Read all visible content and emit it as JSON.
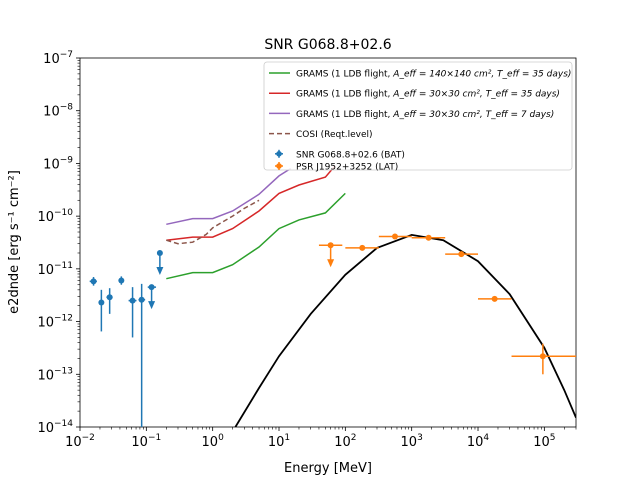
{
  "chart_data": {
    "type": "line",
    "title": "SNR G068.8+02.6",
    "xlabel": "Energy [MeV]",
    "ylabel": "e2dnde [erg s⁻¹ cm⁻²]",
    "xscale": "log",
    "yscale": "log",
    "xlim": [
      0.01,
      300000
    ],
    "ylim": [
      1e-14,
      1e-07
    ],
    "grid": false,
    "legend_position": "top-right",
    "x_ticks": [
      {
        "value": 0.01,
        "base": "10",
        "exp": "−2"
      },
      {
        "value": 0.1,
        "base": "10",
        "exp": "−1"
      },
      {
        "value": 1,
        "base": "10",
        "exp": "0"
      },
      {
        "value": 10,
        "base": "10",
        "exp": "1"
      },
      {
        "value": 100,
        "base": "10",
        "exp": "2"
      },
      {
        "value": 1000,
        "base": "10",
        "exp": "3"
      },
      {
        "value": 10000,
        "base": "10",
        "exp": "4"
      },
      {
        "value": 100000,
        "base": "10",
        "exp": "5"
      }
    ],
    "y_ticks": [
      {
        "value": 1e-14,
        "base": "10",
        "exp": "−14"
      },
      {
        "value": 1e-13,
        "base": "10",
        "exp": "−13"
      },
      {
        "value": 1e-12,
        "base": "10",
        "exp": "−12"
      },
      {
        "value": 1e-11,
        "base": "10",
        "exp": "−11"
      },
      {
        "value": 1e-10,
        "base": "10",
        "exp": "−10"
      },
      {
        "value": 1e-09,
        "base": "10",
        "exp": "−9"
      },
      {
        "value": 1e-08,
        "base": "10",
        "exp": "−8"
      },
      {
        "value": 1e-07,
        "base": "10",
        "exp": "−7"
      }
    ],
    "lines": [
      {
        "name": "GRAMS (1 LDB flight, A_eff = 140×140 cm², T_eff = 35 days)",
        "legend_main": "GRAMS (1 LDB flight, ",
        "legend_math": "A_eff = 140×140 cm², T_eff = 35 days)",
        "color": "#2ca02c",
        "style": "solid",
        "x": [
          0.2,
          0.5,
          1,
          2,
          5,
          10,
          20,
          50,
          100
        ],
        "y": [
          6.5e-12,
          8.5e-12,
          8.5e-12,
          1.2e-11,
          2.6e-11,
          5.8e-11,
          8.5e-11,
          1.15e-10,
          2.7e-10
        ]
      },
      {
        "name": "GRAMS (1 LDB flight, A_eff = 30×30 cm², T_eff = 35 days)",
        "legend_main": "GRAMS (1 LDB flight, ",
        "legend_math": "A_eff = 30×30 cm², T_eff = 35 days)",
        "color": "#d62728",
        "style": "solid",
        "x": [
          0.2,
          0.5,
          1,
          2,
          5,
          10,
          20,
          50,
          70
        ],
        "y": [
          3.5e-11,
          4e-11,
          4e-11,
          5.8e-11,
          1.25e-10,
          2.7e-10,
          3.9e-10,
          5.5e-10,
          9e-10
        ]
      },
      {
        "name": "GRAMS (1 LDB flight, A_eff = 30×30 cm², T_eff = 7 days)",
        "legend_main": "GRAMS (1 LDB flight, ",
        "legend_math": "A_eff = 30×30 cm², T_eff = 7 days)",
        "color": "#9467bd",
        "style": "solid",
        "x": [
          0.2,
          0.5,
          1,
          2,
          5,
          10,
          15
        ],
        "y": [
          7e-11,
          9e-11,
          9e-11,
          1.25e-10,
          2.6e-10,
          5.8e-10,
          8e-10
        ]
      },
      {
        "name": "COSI (Reqt.level)",
        "legend_main": "COSI (Reqt.level)",
        "legend_math": "",
        "color": "#8c564b",
        "style": "dashed",
        "x": [
          0.2,
          0.3,
          0.5,
          0.8,
          1,
          2,
          3,
          5
        ],
        "y": [
          3.5e-11,
          3e-11,
          3.2e-11,
          4.5e-11,
          6e-11,
          1e-10,
          1.4e-10,
          2e-10
        ]
      },
      {
        "name": "model",
        "color": "#000000",
        "style": "solid",
        "in_legend": false,
        "x": [
          2.2,
          5,
          10,
          30,
          100,
          300,
          1000,
          3000,
          10000,
          30000,
          100000,
          200000,
          300000
        ],
        "y": [
          1e-14,
          5.5e-14,
          2.2e-13,
          1.4e-12,
          7.7e-12,
          2.5e-11,
          4.4e-11,
          3.5e-11,
          1.4e-11,
          3.3e-12,
          3.2e-13,
          5e-14,
          1.5e-14
        ]
      }
    ],
    "points_series": [
      {
        "name": "SNR G068.8+02.6 (BAT)",
        "color": "#1f77b4",
        "points": [
          {
            "x": 0.016,
            "y": 5.8e-12,
            "xlo": 0.014,
            "xhi": 0.018,
            "ylo": 4.8e-12,
            "yhi": 7e-12
          },
          {
            "x": 0.021,
            "y": 2.3e-12,
            "xlo": 0.019,
            "xhi": 0.023,
            "ylo": 6.5e-13,
            "yhi": 4e-12
          },
          {
            "x": 0.028,
            "y": 2.9e-12,
            "xlo": 0.025,
            "xhi": 0.031,
            "ylo": 1.4e-12,
            "yhi": 4.3e-12
          },
          {
            "x": 0.042,
            "y": 6e-12,
            "xlo": 0.038,
            "xhi": 0.046,
            "ylo": 5e-12,
            "yhi": 7.2e-12
          },
          {
            "x": 0.062,
            "y": 2.5e-12,
            "xlo": 0.054,
            "xhi": 0.071,
            "ylo": 5e-13,
            "yhi": 4.5e-12
          },
          {
            "x": 0.085,
            "y": 2.6e-12,
            "xlo": 0.076,
            "xhi": 0.096,
            "ylo": 1e-14,
            "yhi": 5.2e-12
          },
          {
            "x": 0.12,
            "y": 4.5e-12,
            "xlo": 0.105,
            "xhi": 0.14,
            "upper": true
          },
          {
            "x": 0.16,
            "y": 2e-11,
            "upper": true
          }
        ]
      },
      {
        "name": "PSR J1952+3252 (LAT)",
        "color": "#ff7f0e",
        "points": [
          {
            "x": 60,
            "y": 2.8e-11,
            "xlo": 40,
            "xhi": 90,
            "upper": true
          },
          {
            "x": 180,
            "y": 2.5e-11,
            "xlo": 100,
            "xhi": 320
          },
          {
            "x": 560,
            "y": 4.1e-11,
            "xlo": 320,
            "xhi": 1000
          },
          {
            "x": 1800,
            "y": 3.9e-11,
            "xlo": 1000,
            "xhi": 3200
          },
          {
            "x": 5600,
            "y": 1.9e-11,
            "xlo": 3200,
            "xhi": 10000
          },
          {
            "x": 17800,
            "y": 2.7e-12,
            "xlo": 10000,
            "xhi": 32000
          },
          {
            "x": 95000,
            "y": 2.2e-13,
            "xlo": 32000,
            "xhi": 300000,
            "ylo": 1e-13,
            "yhi": 3.8e-13
          }
        ]
      }
    ]
  }
}
